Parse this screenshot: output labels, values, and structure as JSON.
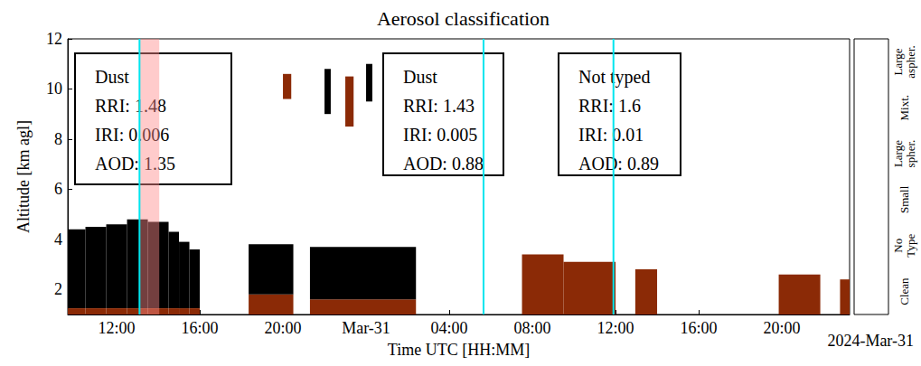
{
  "chart_data": {
    "type": "custom",
    "title": "Aerosol classification",
    "x_label": "Time UTC [HH:MM]",
    "y_label": "Altitude [km agl]",
    "date_label": "2024-Mar-31",
    "xlim": [
      9.65,
      47.26
    ],
    "xticks": [
      {
        "value": 12,
        "label": "12:00"
      },
      {
        "value": 16,
        "label": "16:00"
      },
      {
        "value": 20,
        "label": "20:00"
      },
      {
        "value": 24,
        "label": "Mar-31"
      },
      {
        "value": 28,
        "label": "04:00"
      },
      {
        "value": 32,
        "label": "08:00"
      },
      {
        "value": 36,
        "label": "12:00"
      },
      {
        "value": 40,
        "label": "16:00"
      },
      {
        "value": 44,
        "label": "20:00"
      }
    ],
    "ylim": [
      1,
      12
    ],
    "yticks": [
      2,
      4,
      6,
      8,
      10,
      12
    ],
    "classes": [
      {
        "name": "Clean",
        "color": "#ffffff"
      },
      {
        "name": "No Type",
        "color": "#a6a6a6"
      },
      {
        "name": "Small",
        "color": "#dccf85"
      },
      {
        "name": "Large spher.",
        "color": "#e8793a"
      },
      {
        "name": "Mixt.",
        "color": "#8b2a06"
      },
      {
        "name": "Large aspher.",
        "color": "#000000"
      }
    ],
    "profiles": [
      {
        "start": 9.65,
        "end": 10.5,
        "layers": [
          {
            "class": "Mixt.",
            "bottom": 1.0,
            "top": 1.25
          },
          {
            "class": "Large aspher.",
            "bottom": 1.25,
            "top": 4.4
          }
        ]
      },
      {
        "start": 10.5,
        "end": 11.5,
        "layers": [
          {
            "class": "Mixt.",
            "bottom": 1.0,
            "top": 1.25
          },
          {
            "class": "Large aspher.",
            "bottom": 1.25,
            "top": 4.5
          }
        ]
      },
      {
        "start": 11.5,
        "end": 12.5,
        "layers": [
          {
            "class": "Mixt.",
            "bottom": 1.0,
            "top": 1.25
          },
          {
            "class": "Large aspher.",
            "bottom": 1.25,
            "top": 4.6
          }
        ]
      },
      {
        "start": 12.5,
        "end": 13.5,
        "layers": [
          {
            "class": "Mixt.",
            "bottom": 1.0,
            "top": 1.25
          },
          {
            "class": "Large aspher.",
            "bottom": 1.25,
            "top": 4.8
          }
        ]
      },
      {
        "start": 13.5,
        "end": 14.5,
        "layers": [
          {
            "class": "Mixt.",
            "bottom": 1.0,
            "top": 1.25
          },
          {
            "class": "Large aspher.",
            "bottom": 1.25,
            "top": 4.7
          }
        ]
      },
      {
        "start": 14.5,
        "end": 15.0,
        "layers": [
          {
            "class": "Mixt.",
            "bottom": 1.0,
            "top": 1.25
          },
          {
            "class": "Large aspher.",
            "bottom": 1.25,
            "top": 4.3
          }
        ]
      },
      {
        "start": 15.0,
        "end": 15.5,
        "layers": [
          {
            "class": "Mixt.",
            "bottom": 1.0,
            "top": 1.25
          },
          {
            "class": "Large aspher.",
            "bottom": 1.25,
            "top": 3.9
          }
        ]
      },
      {
        "start": 15.5,
        "end": 16.0,
        "layers": [
          {
            "class": "Mixt.",
            "bottom": 1.0,
            "top": 1.25
          },
          {
            "class": "Large aspher.",
            "bottom": 1.25,
            "top": 3.6
          }
        ]
      },
      {
        "start": 18.35,
        "end": 20.5,
        "layers": [
          {
            "class": "Mixt.",
            "bottom": 1.0,
            "top": 1.8
          },
          {
            "class": "Large aspher.",
            "bottom": 1.8,
            "top": 3.8
          }
        ]
      },
      {
        "start": 20.0,
        "end": 20.4,
        "layers": [
          {
            "class": "Mixt.",
            "bottom": 9.6,
            "top": 10.6
          }
        ]
      },
      {
        "start": 21.3,
        "end": 26.4,
        "layers": [
          {
            "class": "Mixt.",
            "bottom": 1.0,
            "top": 1.6
          },
          {
            "class": "Large aspher.",
            "bottom": 1.6,
            "top": 3.7
          }
        ]
      },
      {
        "start": 22.0,
        "end": 22.3,
        "layers": [
          {
            "class": "Large aspher.",
            "bottom": 9.0,
            "top": 10.8
          }
        ]
      },
      {
        "start": 23.0,
        "end": 23.4,
        "layers": [
          {
            "class": "Mixt.",
            "bottom": 8.5,
            "top": 10.5
          }
        ]
      },
      {
        "start": 24.0,
        "end": 24.3,
        "layers": [
          {
            "class": "Large aspher.",
            "bottom": 9.5,
            "top": 11.0
          }
        ]
      },
      {
        "start": 31.5,
        "end": 33.5,
        "layers": [
          {
            "class": "Mixt.",
            "bottom": 1.0,
            "top": 3.4
          }
        ]
      },
      {
        "start": 33.5,
        "end": 36.0,
        "layers": [
          {
            "class": "Mixt.",
            "bottom": 1.0,
            "top": 3.1
          }
        ]
      },
      {
        "start": 36.95,
        "end": 38.0,
        "layers": [
          {
            "class": "Mixt.",
            "bottom": 1.0,
            "top": 2.8
          }
        ]
      },
      {
        "start": 43.85,
        "end": 45.85,
        "layers": [
          {
            "class": "Mixt.",
            "bottom": 1.0,
            "top": 2.6
          }
        ]
      },
      {
        "start": 46.8,
        "end": 47.26,
        "layers": [
          {
            "class": "Mixt.",
            "bottom": 1.0,
            "top": 2.4
          }
        ]
      }
    ],
    "markers": {
      "color": "#00e5ee",
      "x": [
        13.1,
        29.65,
        35.9
      ]
    },
    "highlight": {
      "color": "#ff8c8c",
      "x": [
        13.1,
        14.05
      ]
    },
    "annotations": [
      {
        "lines": [
          "Dust",
          "RRI: 1.48",
          "IRI: 0.006",
          "AOD: 1.35"
        ]
      },
      {
        "lines": [
          "Dust",
          "RRI: 1.43",
          "IRI: 0.005",
          "AOD: 0.88"
        ]
      },
      {
        "lines": [
          "Not typed",
          "RRI: 1.6",
          "IRI: 0.01",
          "AOD: 0.89"
        ]
      }
    ]
  }
}
